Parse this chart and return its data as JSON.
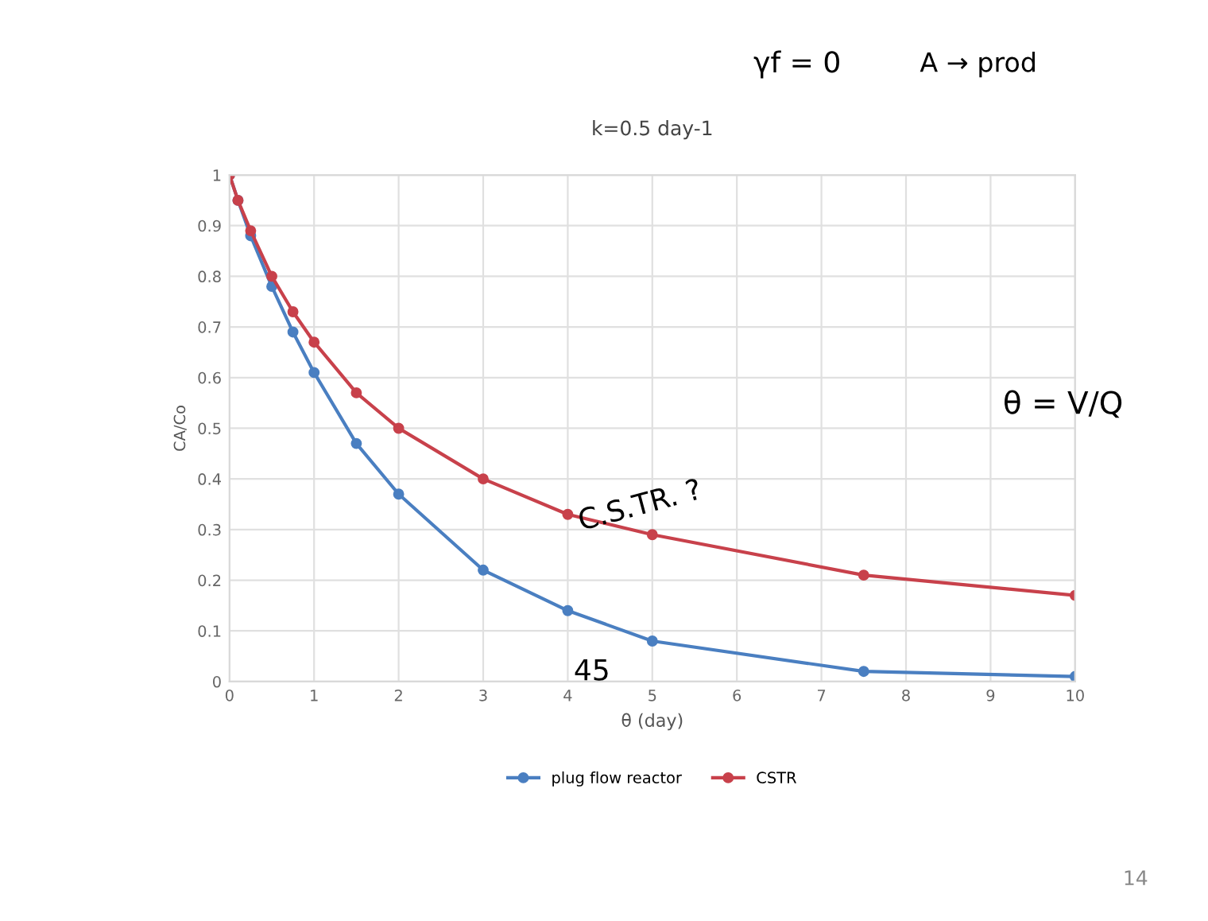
{
  "chart_data": {
    "type": "line",
    "title": "k=0.5 day-1",
    "xlabel": "θ (day)",
    "ylabel": "CA/Co",
    "series": [
      {
        "name": "plug flow reactor",
        "color": "#4a7fc1",
        "x": [
          0,
          0.1,
          0.25,
          0.5,
          0.75,
          1,
          1.5,
          2,
          3,
          4,
          5,
          7.5,
          10
        ],
        "values": [
          1,
          0.95,
          0.88,
          0.78,
          0.69,
          0.61,
          0.47,
          0.37,
          0.22,
          0.14,
          0.08,
          0.02,
          0.01
        ]
      },
      {
        "name": "CSTR",
        "color": "#c8414b",
        "x": [
          0,
          0.1,
          0.25,
          0.5,
          0.75,
          1,
          1.5,
          2,
          3,
          4,
          5,
          7.5,
          10
        ],
        "values": [
          1,
          0.95,
          0.89,
          0.8,
          0.73,
          0.67,
          0.57,
          0.5,
          0.4,
          0.33,
          0.29,
          0.21,
          0.17
        ]
      }
    ],
    "xlim": [
      0,
      10
    ],
    "xticks": [
      0,
      1,
      2,
      3,
      4,
      5,
      6,
      7,
      8,
      9,
      10
    ],
    "ylim": [
      0,
      1
    ],
    "yticks": [
      0,
      0.1,
      0.2,
      0.3,
      0.4,
      0.5,
      0.6,
      0.7,
      0.8,
      0.9,
      1
    ],
    "grid": true,
    "legend": "bottom",
    "marker": "circle",
    "line_style": "solid",
    "annotations": [
      "γf = 0",
      "A → prod",
      "θ = V/Q",
      "C.S.TR. ?",
      "45",
      "14"
    ]
  }
}
